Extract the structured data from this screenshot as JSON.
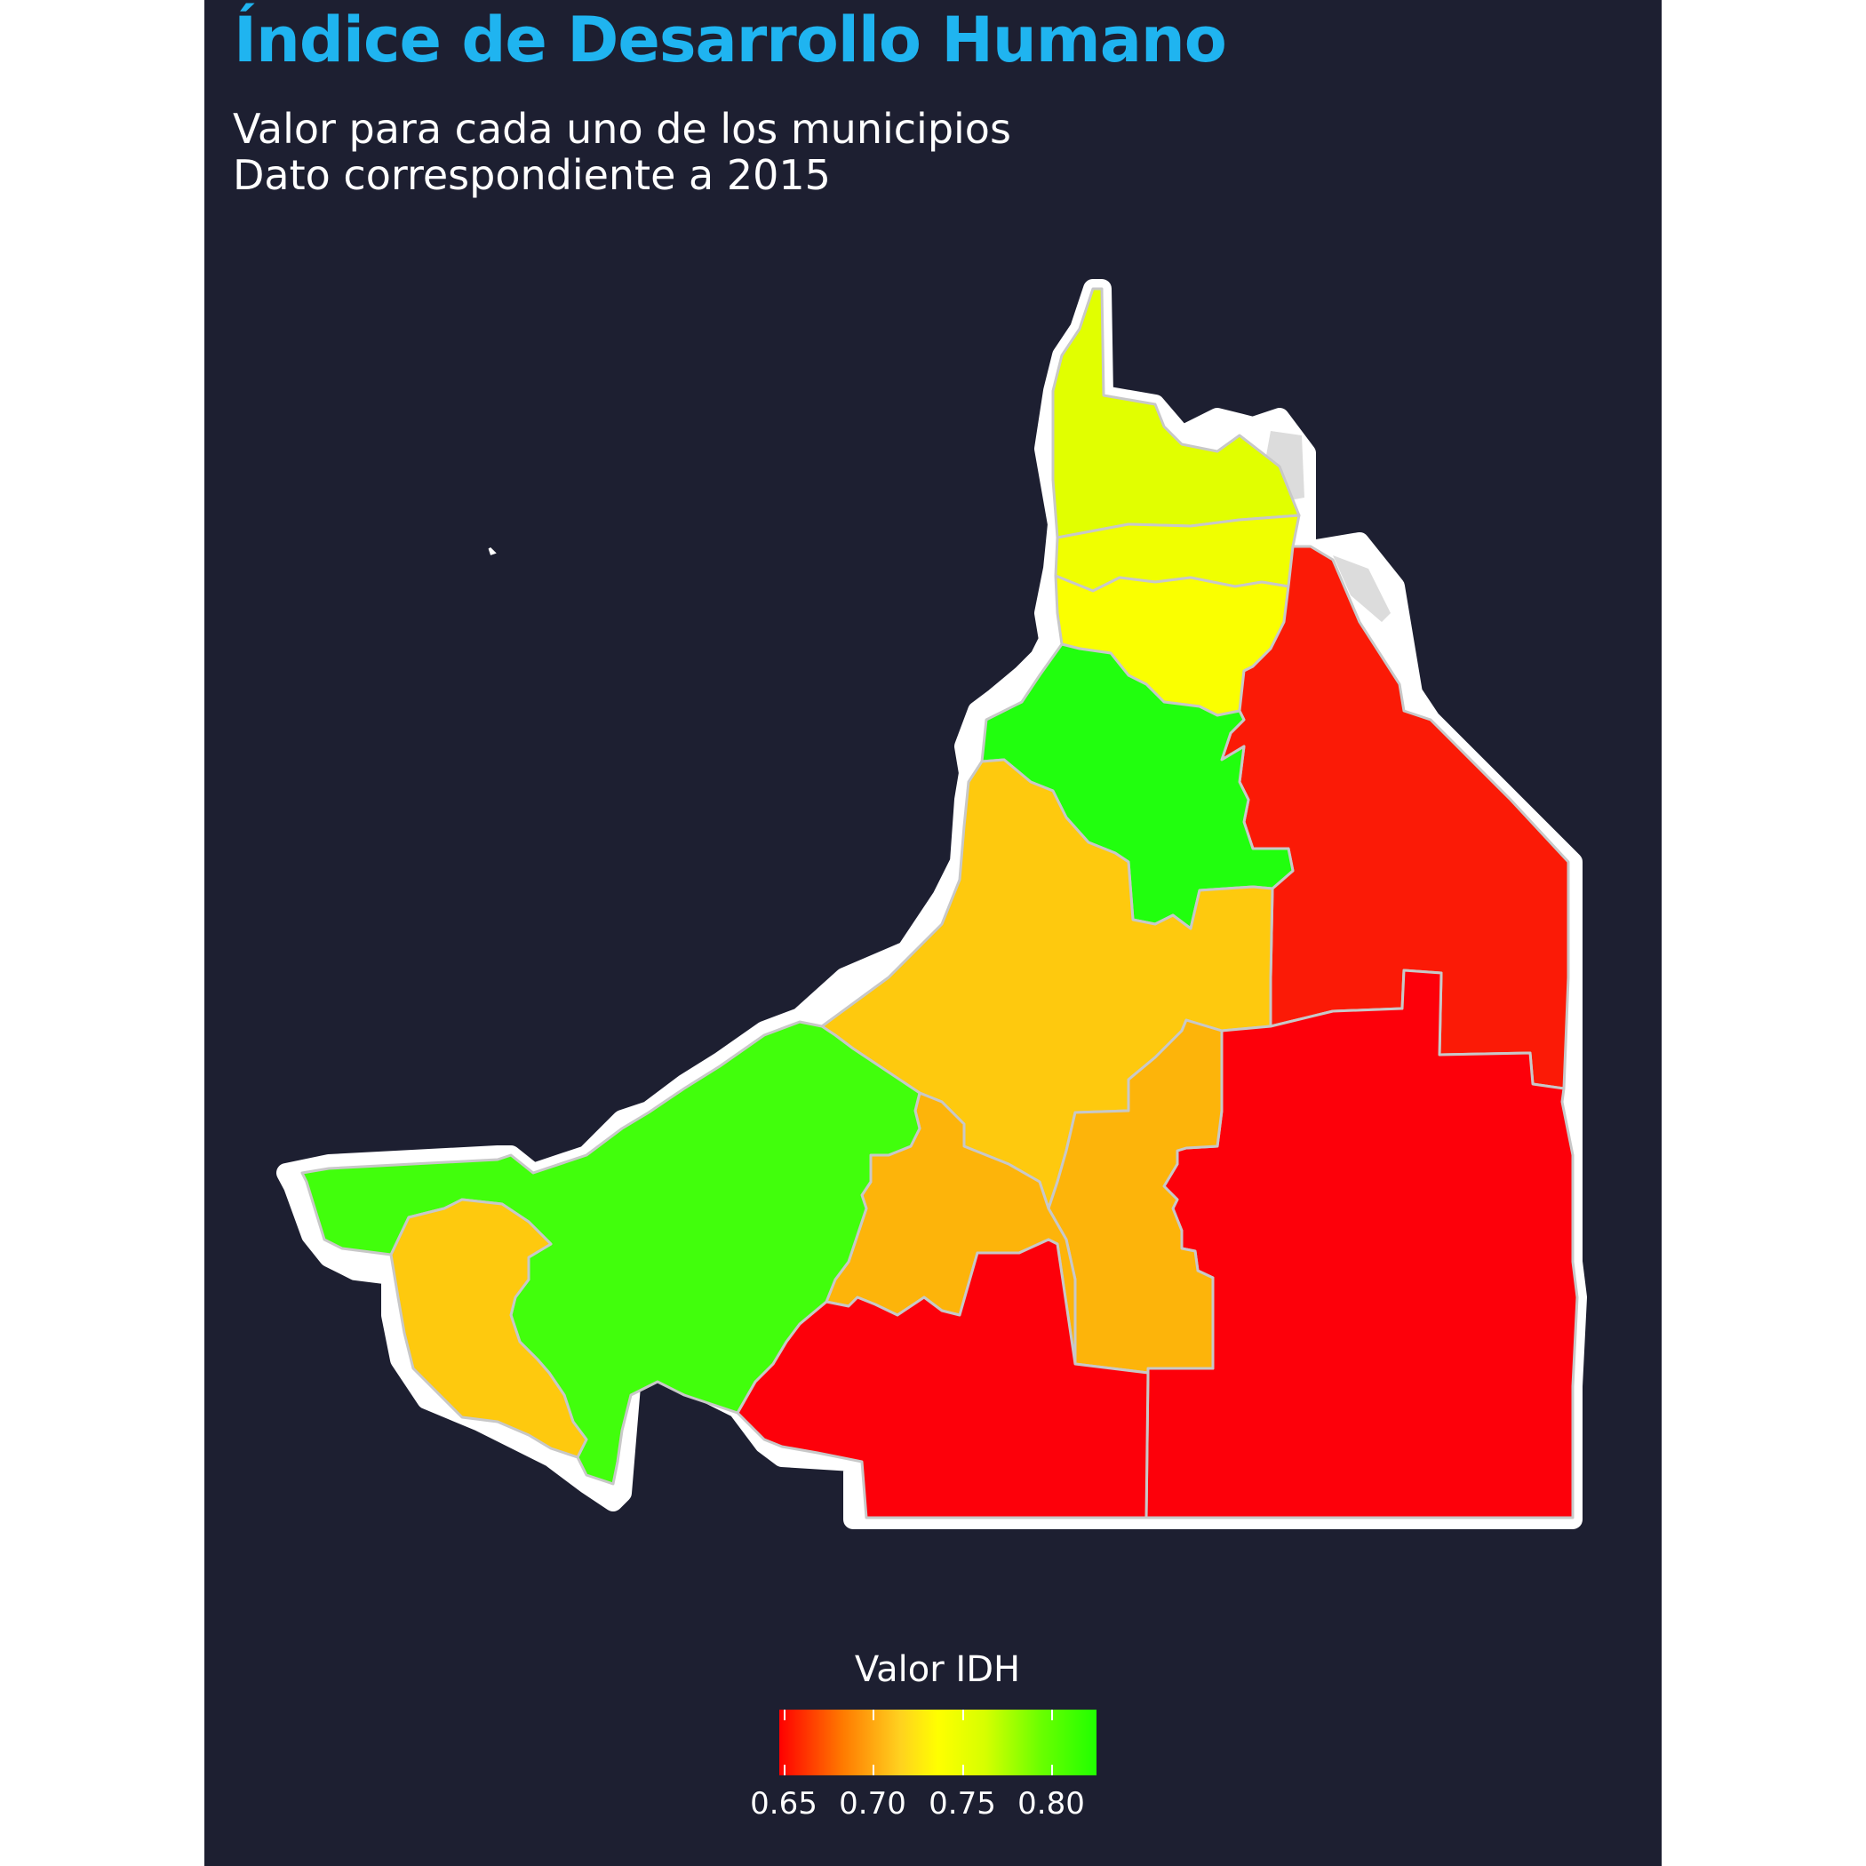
{
  "title": "Índice de Desarrollo Humano",
  "subtitle_line1": "Valor para cada uno de los municipios",
  "subtitle_line2": "Dato correspondiente a 2015",
  "legend": {
    "title": "Valor IDH",
    "ticks": [
      "0.65",
      "0.70",
      "0.75",
      "0.80"
    ]
  },
  "colors": {
    "background": "#1d1f31",
    "title": "#1fb4f0",
    "low": "#ff0000",
    "mid": "#ffff00",
    "high": "#21ff00",
    "border": "#c8c8c8",
    "outline": "#ffffff"
  }
}
